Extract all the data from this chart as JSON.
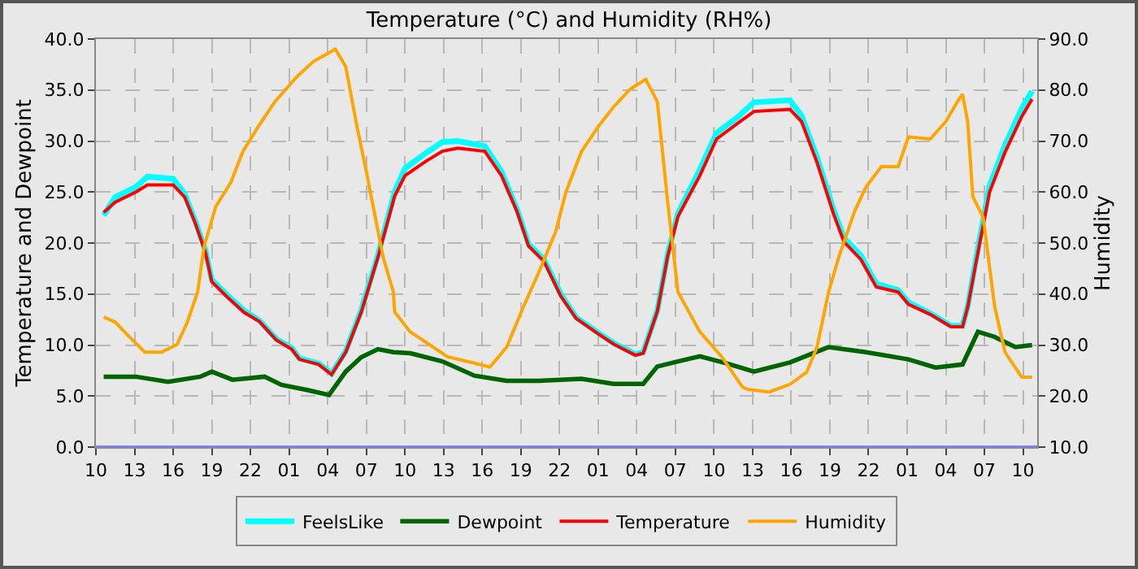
{
  "chart_data": {
    "type": "line",
    "title": "Temperature (°C) and Humidity (RH%)",
    "ylabel": "Temperature and Dewpoint",
    "y2label": "Humidity",
    "xlim": [
      "--01-01T10:00",
      "--01-04T11:06"
    ],
    "xticks": [
      {
        "value": "--01-01T10:00",
        "label": "10"
      },
      {
        "value": "--01-01T13:00",
        "label": "13"
      },
      {
        "value": "--01-01T16:00",
        "label": "16"
      },
      {
        "value": "--01-01T19:00",
        "label": "19"
      },
      {
        "value": "--01-01T22:00",
        "label": "22"
      },
      {
        "value": "--01-02T01:00",
        "label": "01"
      },
      {
        "value": "--01-02T04:00",
        "label": "04"
      },
      {
        "value": "--01-02T07:00",
        "label": "07"
      },
      {
        "value": "--01-02T10:00",
        "label": "10"
      },
      {
        "value": "--01-02T13:00",
        "label": "13"
      },
      {
        "value": "--01-02T16:00",
        "label": "16"
      },
      {
        "value": "--01-02T19:00",
        "label": "19"
      },
      {
        "value": "--01-02T22:00",
        "label": "22"
      },
      {
        "value": "--01-03T01:00",
        "label": "01"
      },
      {
        "value": "--01-03T04:00",
        "label": "04"
      },
      {
        "value": "--01-03T07:00",
        "label": "07"
      },
      {
        "value": "--01-03T10:00",
        "label": "10"
      },
      {
        "value": "--01-03T13:00",
        "label": "13"
      },
      {
        "value": "--01-03T16:00",
        "label": "16"
      },
      {
        "value": "--01-03T19:00",
        "label": "19"
      },
      {
        "value": "--01-03T22:00",
        "label": "22"
      },
      {
        "value": "--01-04T01:00",
        "label": "01"
      },
      {
        "value": "--01-04T04:00",
        "label": "04"
      },
      {
        "value": "--01-04T07:00",
        "label": "07"
      },
      {
        "value": "--01-04T10:00",
        "label": "10"
      }
    ],
    "ylim": [
      0,
      40
    ],
    "yticks": [
      {
        "value": 0,
        "label": "0.0"
      },
      {
        "value": 5,
        "label": "5.0"
      },
      {
        "value": 10,
        "label": "10.0"
      },
      {
        "value": 15,
        "label": "15.0"
      },
      {
        "value": 20,
        "label": "20.0"
      },
      {
        "value": 25,
        "label": "25.0"
      },
      {
        "value": 30,
        "label": "30.0"
      },
      {
        "value": 35,
        "label": "35.0"
      },
      {
        "value": 40,
        "label": "40.0"
      }
    ],
    "y2lim": [
      10,
      90
    ],
    "y2ticks": [
      {
        "value": 10,
        "label": "10.0"
      },
      {
        "value": 20,
        "label": "20.0"
      },
      {
        "value": 30,
        "label": "30.0"
      },
      {
        "value": 40,
        "label": "40.0"
      },
      {
        "value": 50,
        "label": "50.0"
      },
      {
        "value": 60,
        "label": "60.0"
      },
      {
        "value": 70,
        "label": "70.0"
      },
      {
        "value": 80,
        "label": "80.0"
      },
      {
        "value": 90,
        "label": "90.0"
      }
    ],
    "grid": true,
    "legend": "bottom",
    "line_style": "solid",
    "ref_lines": [
      {
        "axis": "y",
        "value": 0,
        "color": "#8080ff"
      }
    ],
    "series": [
      {
        "name": "FeelsLike",
        "color": "#00ffff",
        "x": [
          "--01-01T10:36",
          "--01-01T11:30",
          "--01-01T13:06",
          "--01-01T14:00",
          "--01-01T16:00",
          "--01-01T16:54",
          "--01-01T17:42",
          "--01-01T18:30",
          "--01-01T19:00",
          "--01-01T20:12",
          "--01-01T21:30",
          "--01-01T22:42",
          "--01-02T00:00",
          "--01-02T01:12",
          "--01-02T01:48",
          "--01-02T03:18",
          "--01-02T04:18",
          "--01-02T05:24",
          "--01-02T06:36",
          "--01-02T07:54",
          "--01-02T09:12",
          "--01-02T10:00",
          "--01-02T11:36",
          "--01-02T12:54",
          "--01-02T14:06",
          "--01-02T16:12",
          "--01-02T17:30",
          "--01-02T18:42",
          "--01-02T19:36",
          "--01-02T20:48",
          "--01-02T22:06",
          "--01-02T23:18",
          "--01-03T01:00",
          "--01-03T02:12",
          "--01-03T03:54",
          "--01-03T04:30",
          "--01-03T05:36",
          "--01-03T06:24",
          "--01-03T07:12",
          "--01-03T08:54",
          "--01-03T10:12",
          "--01-03T11:48",
          "--01-03T13:06",
          "--01-03T15:54",
          "--01-03T16:48",
          "--01-03T18:00",
          "--01-03T19:18",
          "--01-03T20:06",
          "--01-03T21:24",
          "--01-03T22:36",
          "--01-04T00:18",
          "--01-04T01:06",
          "--01-04T02:48",
          "--01-04T04:24",
          "--01-04T05:18",
          "--01-04T05:42",
          "--01-04T06:30",
          "--01-04T07:24",
          "--01-04T08:36",
          "--01-04T09:54",
          "--01-04T10:42"
        ],
        "values": [
          22.7,
          24.5,
          25.5,
          26.5,
          26.3,
          24.8,
          22.2,
          19.3,
          16.4,
          14.9,
          13.4,
          12.4,
          10.6,
          9.7,
          8.7,
          8.2,
          7.2,
          9.4,
          13.4,
          18.8,
          25,
          27.3,
          28.8,
          29.9,
          30,
          29.5,
          27,
          23.3,
          19.9,
          18.4,
          15,
          12.7,
          11.2,
          10.2,
          9.1,
          9.3,
          13.4,
          18.9,
          22.9,
          27.2,
          30.8,
          32.3,
          33.8,
          34,
          32.5,
          28.4,
          23.2,
          20.5,
          18.8,
          16,
          15.4,
          14.2,
          13.1,
          11.9,
          11.9,
          13.8,
          19.5,
          25.6,
          29.6,
          33.2,
          34.9
        ]
      },
      {
        "name": "Dewpoint",
        "color": "#006400",
        "x": [
          "--01-01T10:36",
          "--01-01T13:06",
          "--01-01T15:36",
          "--01-01T18:06",
          "--01-01T19:00",
          "--01-01T20:36",
          "--01-01T23:06",
          "--01-02T00:24",
          "--01-02T02:24",
          "--01-02T04:06",
          "--01-02T05:24",
          "--01-02T06:36",
          "--01-02T07:54",
          "--01-02T09:06",
          "--01-02T10:24",
          "--01-02T12:54",
          "--01-02T15:24",
          "--01-02T17:54",
          "--01-02T20:24",
          "--01-02T23:42",
          "--01-03T02:12",
          "--01-03T04:30",
          "--01-03T05:36",
          "--01-03T07:12",
          "--01-03T08:54",
          "--01-03T11:00",
          "--01-03T13:06",
          "--01-03T15:54",
          "--01-03T18:54",
          "--01-03T21:48",
          "--01-04T01:06",
          "--01-04T03:12",
          "--01-04T05:18",
          "--01-04T06:30",
          "--01-04T07:48",
          "--01-04T09:24",
          "--01-04T10:42"
        ],
        "values": [
          6.9,
          6.9,
          6.4,
          6.9,
          7.4,
          6.6,
          6.9,
          6.1,
          5.6,
          5.1,
          7.4,
          8.8,
          9.6,
          9.3,
          9.2,
          8.4,
          7,
          6.5,
          6.5,
          6.7,
          6.2,
          6.2,
          7.9,
          8.4,
          8.9,
          8.2,
          7.4,
          8.3,
          9.8,
          9.3,
          8.6,
          7.8,
          8.1,
          11.3,
          10.8,
          9.8,
          10
        ]
      },
      {
        "name": "Temperature",
        "color": "#ff0000",
        "x": [
          "--01-01T10:36",
          "--01-01T11:30",
          "--01-01T13:06",
          "--01-01T14:00",
          "--01-01T16:00",
          "--01-01T16:54",
          "--01-01T17:42",
          "--01-01T18:30",
          "--01-01T19:00",
          "--01-01T20:12",
          "--01-01T21:30",
          "--01-01T22:42",
          "--01-02T00:00",
          "--01-02T01:12",
          "--01-02T01:48",
          "--01-02T03:18",
          "--01-02T04:18",
          "--01-02T05:24",
          "--01-02T06:36",
          "--01-02T07:54",
          "--01-02T09:12",
          "--01-02T10:00",
          "--01-02T11:36",
          "--01-02T12:54",
          "--01-02T14:06",
          "--01-02T16:12",
          "--01-02T17:30",
          "--01-02T18:42",
          "--01-02T19:36",
          "--01-02T20:48",
          "--01-02T22:06",
          "--01-02T23:18",
          "--01-03T01:00",
          "--01-03T02:12",
          "--01-03T03:54",
          "--01-03T04:30",
          "--01-03T05:36",
          "--01-03T06:24",
          "--01-03T07:12",
          "--01-03T08:54",
          "--01-03T10:12",
          "--01-03T11:48",
          "--01-03T13:06",
          "--01-03T15:54",
          "--01-03T16:48",
          "--01-03T18:00",
          "--01-03T19:18",
          "--01-03T20:06",
          "--01-03T21:24",
          "--01-03T22:36",
          "--01-04T00:18",
          "--01-04T01:06",
          "--01-04T02:48",
          "--01-04T04:24",
          "--01-04T05:18",
          "--01-04T05:42",
          "--01-04T06:30",
          "--01-04T07:24",
          "--01-04T08:36",
          "--01-04T09:54",
          "--01-04T10:42"
        ],
        "values": [
          23,
          24,
          25,
          25.7,
          25.7,
          24.5,
          22,
          19.1,
          16.2,
          14.7,
          13.2,
          12.3,
          10.5,
          9.6,
          8.6,
          8.1,
          7.1,
          9.3,
          13.2,
          18.6,
          24.6,
          26.6,
          28,
          29,
          29.3,
          29,
          26.6,
          23.1,
          19.7,
          18.2,
          14.8,
          12.6,
          11.1,
          10.1,
          9,
          9.2,
          13.3,
          18.7,
          22.6,
          26.6,
          30.2,
          31.7,
          32.9,
          33.1,
          31.9,
          27.9,
          22.8,
          20.1,
          18.4,
          15.7,
          15.2,
          14,
          13,
          11.8,
          11.8,
          13.7,
          19.1,
          25,
          28.9,
          32.4,
          34.1
        ]
      },
      {
        "name": "Humidity",
        "color": "#ffa500",
        "axis": "y2",
        "x": [
          "--01-01T10:36",
          "--01-01T11:30",
          "--01-01T12:36",
          "--01-01T13:48",
          "--01-01T15:06",
          "--01-01T16:18",
          "--01-01T17:06",
          "--01-01T17:54",
          "--01-01T18:24",
          "--01-01T19:18",
          "--01-01T20:30",
          "--01-01T21:24",
          "--01-01T22:36",
          "--01-01T23:54",
          "--01-02T01:36",
          "--01-02T02:54",
          "--01-02T04:36",
          "--01-02T05:24",
          "--01-02T06:12",
          "--01-02T07:00",
          "--01-02T08:18",
          "--01-02T09:06",
          "--01-02T09:12",
          "--01-02T10:24",
          "--01-02T11:36",
          "--01-02T13:18",
          "--01-02T15:00",
          "--01-02T16:36",
          "--01-02T17:54",
          "--01-02T19:12",
          "--01-02T20:24",
          "--01-02T21:42",
          "--01-02T22:30",
          "--01-02T23:42",
          "--01-03T01:00",
          "--01-03T02:12",
          "--01-03T03:30",
          "--01-03T04:42",
          "--01-03T05:36",
          "--01-03T06:24",
          "--01-03T07:12",
          "--01-03T08:54",
          "--01-03T10:36",
          "--01-03T12:12",
          "--01-03T12:36",
          "--01-03T14:18",
          "--01-03T15:54",
          "--01-03T17:12",
          "--01-03T18:00",
          "--01-03T18:54",
          "--01-03T19:42",
          "--01-03T20:54",
          "--01-03T21:48",
          "--01-03T23:00",
          "--01-04T00:18",
          "--01-04T01:06",
          "--01-04T02:48",
          "--01-04T04:00",
          "--01-04T04:54",
          "--01-04T05:18",
          "--01-04T05:42",
          "--01-04T06:06",
          "--01-04T06:54",
          "--01-04T07:48",
          "--01-04T08:36",
          "--01-04T09:54",
          "--01-04T10:42"
        ],
        "values": [
          35.5,
          34.5,
          31.6,
          28.6,
          28.6,
          30.1,
          34.5,
          40.4,
          49.3,
          57.1,
          62,
          67.9,
          72.8,
          77.7,
          82.6,
          85.6,
          88,
          84.6,
          73.8,
          64,
          47.3,
          40.4,
          36.5,
          32.6,
          30.6,
          27.7,
          26.7,
          25.7,
          29.6,
          37.5,
          44.3,
          52.2,
          60,
          67.9,
          72.8,
          76.7,
          80.2,
          82.1,
          77.7,
          58.1,
          40.4,
          32.6,
          27.7,
          21.8,
          21.3,
          20.8,
          22.3,
          24.7,
          29.6,
          40.4,
          47.3,
          56.1,
          61,
          65,
          65,
          70.8,
          70.4,
          73.8,
          77.7,
          79.2,
          73.8,
          59.1,
          55.1,
          37.5,
          28.6,
          23.7,
          23.7
        ]
      }
    ]
  }
}
